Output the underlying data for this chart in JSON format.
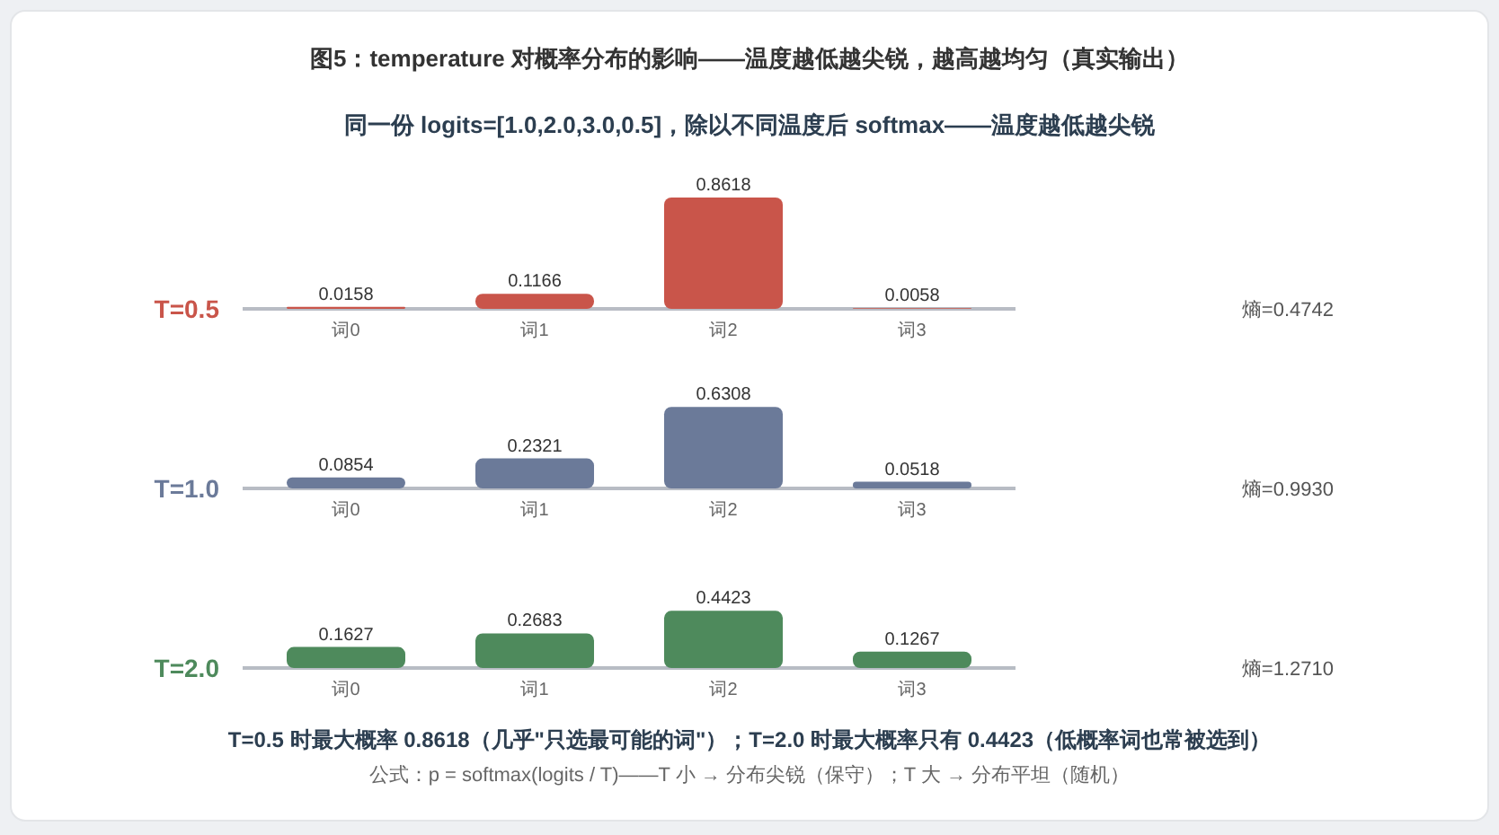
{
  "chart_data": [
    {
      "type": "bar",
      "title": "图5：temperature 对概率分布的影响——温度越低越尖锐，越高越均匀（真实输出）",
      "subtitle": "同一份 logits=[1.0,2.0,3.0,0.5]，除以不同温度后 softmax——温度越低越尖锐",
      "ylabel": "T=0.5",
      "categories": [
        "词0",
        "词1",
        "词2",
        "词3"
      ],
      "series": [
        {
          "color": "#c9554a",
          "values": [
            0.0158,
            0.1166,
            0.8618,
            0.0058
          ]
        }
      ],
      "data_labels": true,
      "annotations": [
        "熵=0.4742"
      ]
    },
    {
      "type": "bar",
      "ylabel": "T=1.0",
      "categories": [
        "词0",
        "词1",
        "词2",
        "词3"
      ],
      "series": [
        {
          "color": "#6b7a99",
          "values": [
            0.0854,
            0.2321,
            0.6308,
            0.0518
          ]
        }
      ],
      "data_labels": true,
      "annotations": [
        "熵=0.9930"
      ]
    },
    {
      "type": "bar",
      "ylabel": "T=2.0",
      "categories": [
        "词0",
        "词1",
        "词2",
        "词3"
      ],
      "series": [
        {
          "color": "#4e8a5c",
          "values": [
            0.1627,
            0.2683,
            0.4423,
            0.1267
          ]
        }
      ],
      "data_labels": true,
      "annotations": [
        "熵=1.2710",
        "T=0.5 时最大概率 0.8618（几乎\"只选最可能的词\"）；T=2.0 时最大概率只有 0.4423（低概率词也常被选到）",
        "公式：p = softmax(logits / T)——T 小 → 分布尖锐（保守）；T 大 → 分布平坦（随机）"
      ]
    }
  ]
}
